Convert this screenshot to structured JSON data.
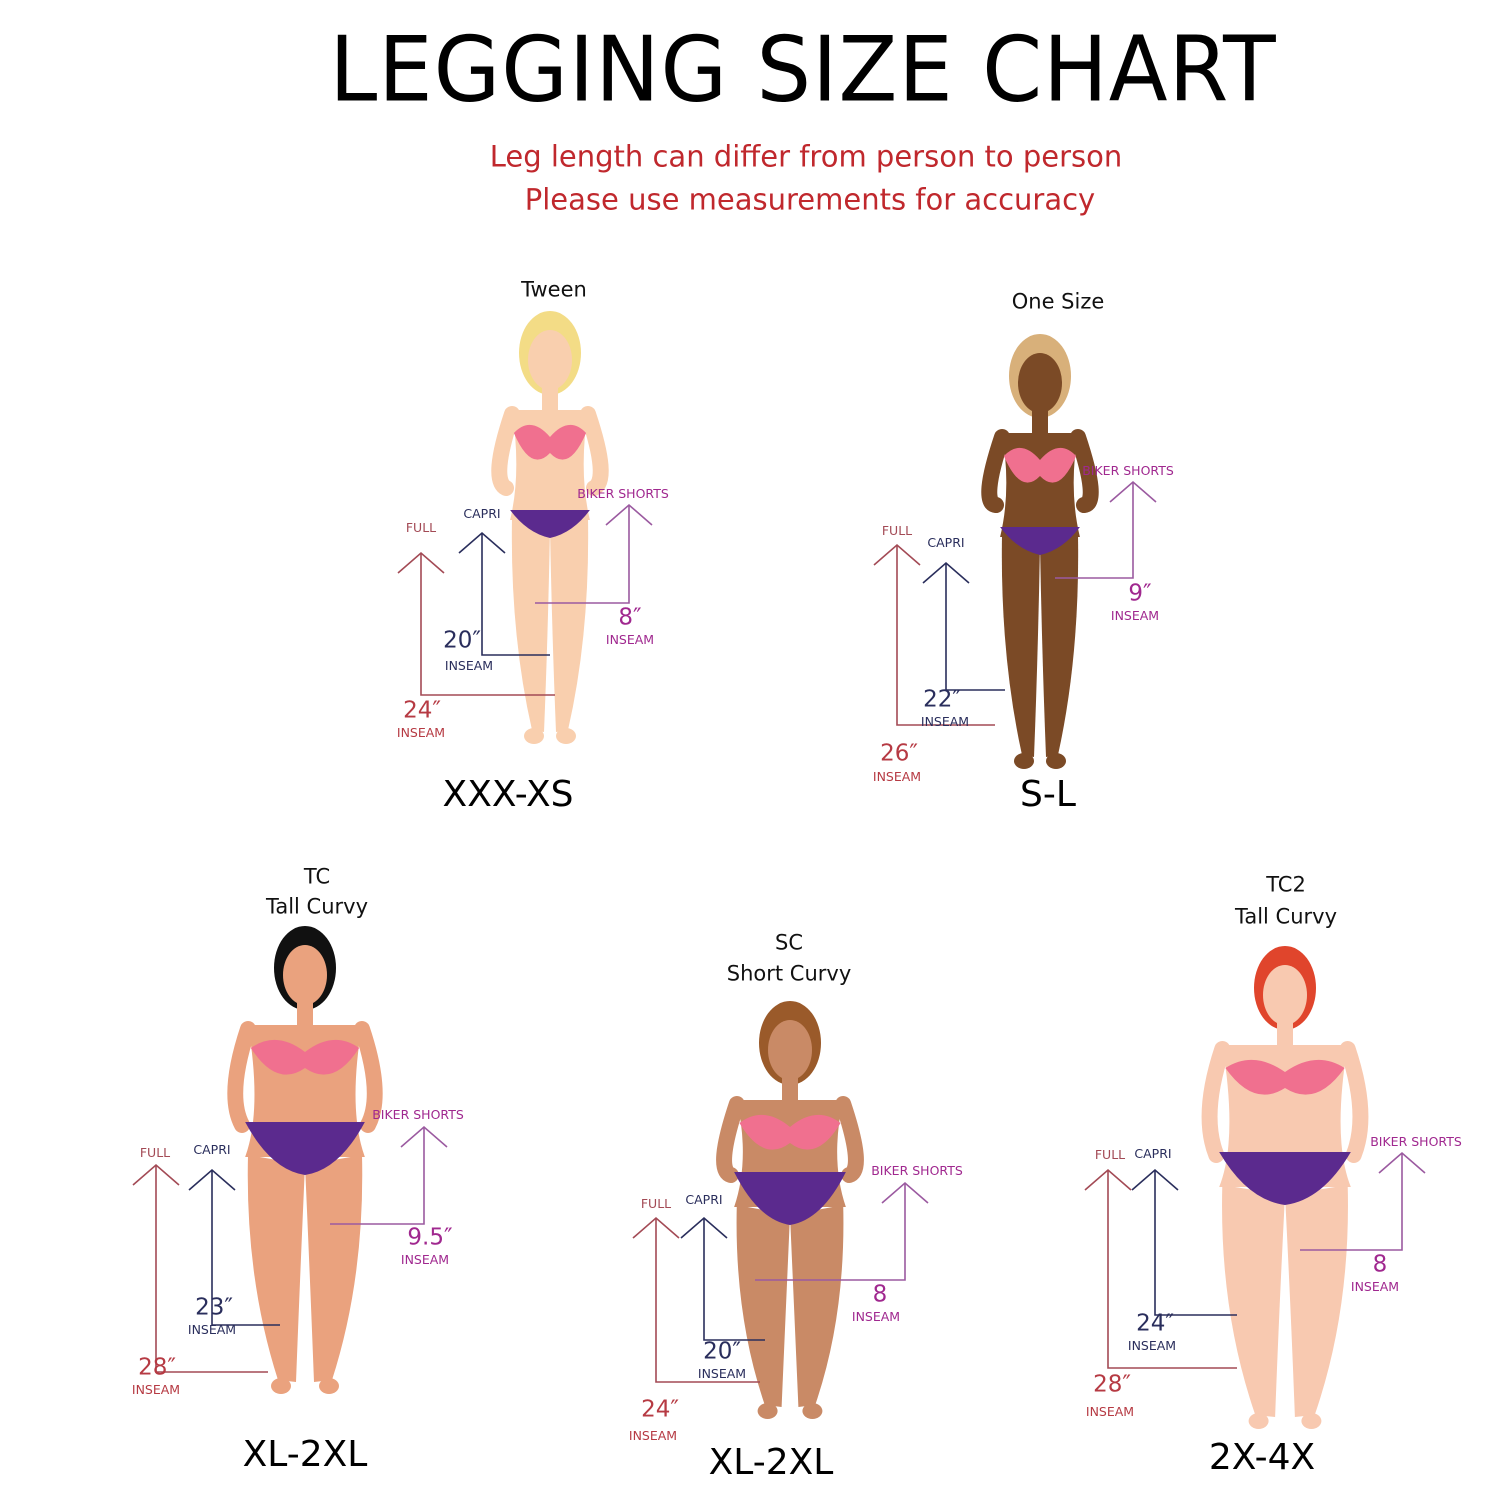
{
  "title": "LEGGING  SIZE CHART",
  "subtitle": [
    "Leg length can differ from person to person",
    "Please use measurements for accuracy"
  ],
  "colors": {
    "full": "#b63a43",
    "capri": "#2a2e5c",
    "biker": "#a0288f",
    "subtitle": "#c0282d",
    "bra": "#f0708f",
    "briefs": "#5b2a8e"
  },
  "labels": {
    "full": "FULL",
    "capri": "CAPRI",
    "biker": "BIKER SHORTS",
    "inseam": "INSEAM"
  },
  "panels": [
    {
      "category": [
        "Tween"
      ],
      "size": "XXX-XS",
      "full": "24″",
      "capri": "20″",
      "biker": "8″",
      "skin": "#f9cfae",
      "hair": "#f3dc86"
    },
    {
      "category": [
        "One Size"
      ],
      "size": "S-L",
      "full": "26″",
      "capri": "22″",
      "biker": "9″",
      "skin": "#7b4a26",
      "hair": "#d8b07a"
    },
    {
      "category": [
        "TC",
        "Tall Curvy"
      ],
      "size": "XL-2XL",
      "full": "28″",
      "capri": "23″",
      "biker": "9.5″",
      "skin": "#eaa27e",
      "hair": "#111111"
    },
    {
      "category": [
        "SC",
        "Short Curvy"
      ],
      "size": "XL-2XL",
      "full": "24″",
      "capri": "20″",
      "biker": "8",
      "skin": "#c98a66",
      "hair": "#9a5a2a"
    },
    {
      "category": [
        "TC2",
        "Tall Curvy"
      ],
      "size": "2X-4X",
      "full": "28″",
      "capri": "24″",
      "biker": "8",
      "skin": "#f8c9b0",
      "hair": "#e0452c"
    }
  ]
}
